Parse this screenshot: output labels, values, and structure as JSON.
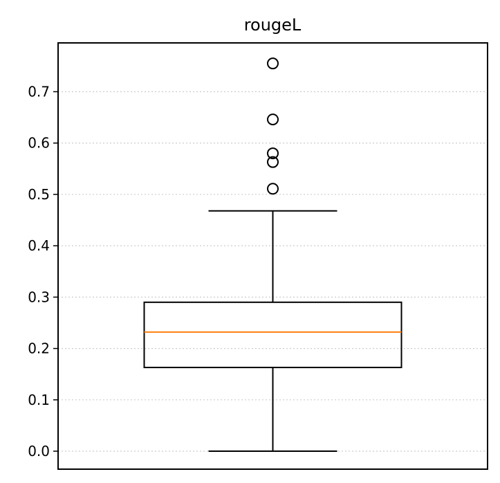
{
  "chart_data": {
    "type": "box",
    "title": "rougeL",
    "xlabel": "",
    "ylabel": "",
    "ylim": [
      -0.035,
      0.795
    ],
    "yticks": [
      0.0,
      0.1,
      0.2,
      0.3,
      0.4,
      0.5,
      0.6,
      0.7
    ],
    "ytick_labels": [
      "0.0",
      "0.1",
      "0.2",
      "0.3",
      "0.4",
      "0.5",
      "0.6",
      "0.7"
    ],
    "grid": "horizontal dotted",
    "box": {
      "whisker_low": 0.0,
      "q1": 0.163,
      "median": 0.232,
      "q3": 0.29,
      "whisker_high": 0.468,
      "outliers": [
        0.511,
        0.563,
        0.58,
        0.646,
        0.755
      ]
    },
    "colors": {
      "box": "#000000",
      "median": "#ff7f0e",
      "grid": "#cccccc"
    }
  }
}
